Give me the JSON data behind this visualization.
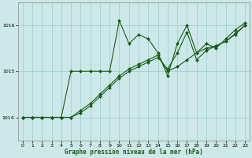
{
  "xlabel": "Graphe pression niveau de la mer (hPa)",
  "bg_color": "#cce8e8",
  "grid_color": "#99cccc",
  "line_color": "#1a5c1a",
  "marker": "D",
  "marker_size": 2,
  "line_width": 0.8,
  "xlim": [
    -0.5,
    23.5
  ],
  "ylim": [
    1013.5,
    1016.5
  ],
  "yticks": [
    1014,
    1015,
    1016
  ],
  "xticks": [
    0,
    1,
    2,
    3,
    4,
    5,
    6,
    7,
    8,
    9,
    10,
    11,
    12,
    13,
    14,
    15,
    16,
    17,
    18,
    19,
    20,
    21,
    22,
    23
  ],
  "series1": {
    "x": [
      0,
      1,
      2,
      3,
      4,
      5,
      6,
      7,
      8,
      9,
      10,
      11,
      12,
      13,
      14,
      15,
      16,
      17,
      18,
      19,
      20,
      21,
      22,
      23
    ],
    "y": [
      1014.0,
      1014.0,
      1014.0,
      1014.0,
      1014.0,
      1015.0,
      1015.0,
      1015.0,
      1015.0,
      1015.0,
      1016.1,
      1015.6,
      1015.8,
      1015.7,
      1015.4,
      1014.9,
      1015.6,
      1016.0,
      1015.4,
      1015.6,
      1015.5,
      1015.7,
      1015.9,
      1016.05
    ]
  },
  "series2": {
    "x": [
      0,
      1,
      2,
      3,
      4,
      5,
      6,
      7,
      8,
      9,
      10,
      11,
      12,
      13,
      14,
      15,
      16,
      17,
      18,
      19,
      20,
      21,
      22,
      23
    ],
    "y": [
      1014.0,
      1014.0,
      1014.0,
      1014.0,
      1014.0,
      1014.0,
      1014.15,
      1014.3,
      1014.5,
      1014.7,
      1014.9,
      1015.05,
      1015.15,
      1015.25,
      1015.35,
      1015.0,
      1015.1,
      1015.25,
      1015.4,
      1015.5,
      1015.55,
      1015.65,
      1015.8,
      1016.0
    ]
  },
  "series3": {
    "x": [
      0,
      1,
      2,
      3,
      4,
      5,
      6,
      7,
      8,
      9,
      10,
      11,
      12,
      13,
      14,
      15,
      16,
      17,
      18,
      19,
      20,
      21,
      22,
      23
    ],
    "y": [
      1014.0,
      1014.0,
      1014.0,
      1014.0,
      1014.0,
      1014.0,
      1014.1,
      1014.25,
      1014.45,
      1014.65,
      1014.85,
      1015.0,
      1015.1,
      1015.2,
      1015.3,
      1015.05,
      1015.4,
      1015.85,
      1015.25,
      1015.45,
      1015.55,
      1015.65,
      1015.82,
      1016.0
    ]
  }
}
